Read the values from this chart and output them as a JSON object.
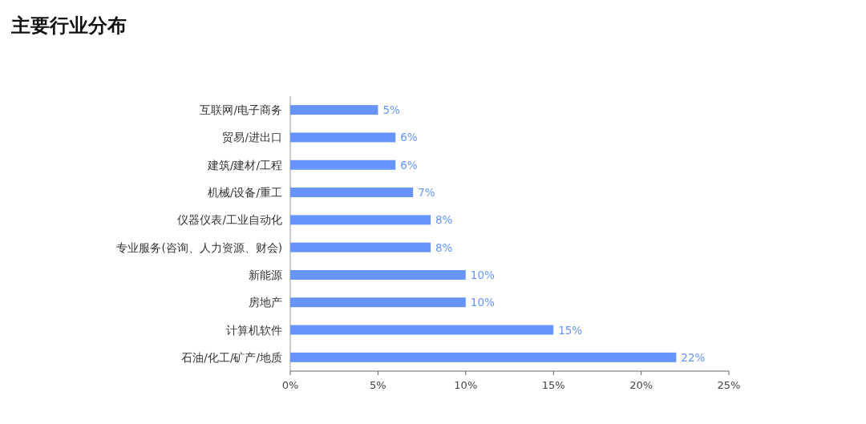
{
  "chart_data": {
    "type": "bar",
    "orientation": "horizontal",
    "title": "主要行业分布",
    "categories": [
      "互联网/电子商务",
      "贸易/进出口",
      "建筑/建材/工程",
      "机械/设备/重工",
      "仪器仪表/工业自动化",
      "专业服务(咨询、人力资源、财会)",
      "新能源",
      "房地产",
      "计算机软件",
      "石油/化工/矿产/地质"
    ],
    "values": [
      5,
      6,
      6,
      7,
      8,
      8,
      10,
      10,
      15,
      22
    ],
    "value_labels": [
      "5%",
      "6%",
      "6%",
      "7%",
      "8%",
      "8%",
      "10%",
      "10%",
      "15%",
      "22%"
    ],
    "color": "#6694fb",
    "xlim": [
      0,
      25
    ],
    "xticks": [
      {
        "value": 0,
        "label": "0%"
      },
      {
        "value": 5,
        "label": "5%"
      },
      {
        "value": 10,
        "label": "10%"
      },
      {
        "value": 15,
        "label": "15%"
      },
      {
        "value": 20,
        "label": "20%"
      },
      {
        "value": 25,
        "label": "25%"
      }
    ]
  }
}
